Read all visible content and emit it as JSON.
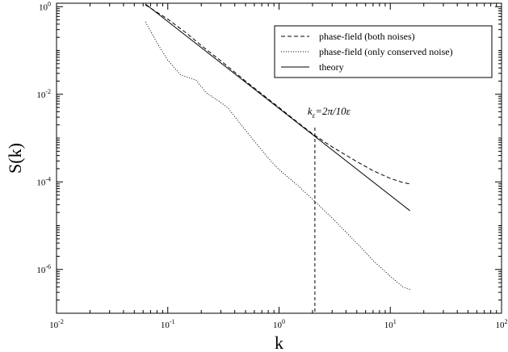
{
  "chart_data": {
    "type": "line",
    "xlabel": "k",
    "ylabel": "S(k)",
    "x_scale": "log",
    "y_scale": "log",
    "xlim": [
      0.01,
      100
    ],
    "ylim": [
      1e-07,
      1.2
    ],
    "x_ticks": [
      {
        "value": 0.01,
        "base": "10",
        "exp": "-2"
      },
      {
        "value": 0.1,
        "base": "10",
        "exp": "-1"
      },
      {
        "value": 1,
        "base": "10",
        "exp": "0"
      },
      {
        "value": 10,
        "base": "10",
        "exp": "1"
      },
      {
        "value": 100,
        "base": "10",
        "exp": "2"
      }
    ],
    "y_ticks": [
      {
        "value": 1e-06,
        "base": "10",
        "exp": "-6"
      },
      {
        "value": 0.0001,
        "base": "10",
        "exp": "-4"
      },
      {
        "value": 0.01,
        "base": "10",
        "exp": "-2"
      },
      {
        "value": 1,
        "base": "10",
        "exp": "0"
      }
    ],
    "grid": false,
    "legend_position": "top-right",
    "series": [
      {
        "name": "phase-field (both noises)",
        "style": "dashed",
        "color": "#000000",
        "x": [
          0.063,
          0.1,
          0.15,
          0.2,
          0.3,
          0.5,
          0.8,
          1.0,
          1.5,
          2.0,
          3.0,
          5.0,
          7.0,
          10.0,
          13.0,
          15.0
        ],
        "y": [
          1.1,
          0.52,
          0.24,
          0.13,
          0.058,
          0.02,
          0.0078,
          0.005,
          0.0022,
          0.00125,
          0.00063,
          0.00029,
          0.00018,
          0.00012,
          9.65e-05,
          9e-05
        ]
      },
      {
        "name": "phase-field (only conserved noise)",
        "style": "dotted",
        "color": "#000000",
        "x": [
          0.063,
          0.08,
          0.1,
          0.13,
          0.18,
          0.22,
          0.3,
          0.35,
          0.45,
          0.6,
          0.8,
          1.0,
          1.5,
          2.0,
          3.0,
          5.0,
          7.0,
          10.0,
          13.0,
          15.0
        ],
        "y": [
          0.45,
          0.15,
          0.06,
          0.028,
          0.021,
          0.011,
          0.0065,
          0.0048,
          0.0021,
          0.00085,
          0.00035,
          0.00019,
          8e-05,
          4e-05,
          1.5e-05,
          4e-06,
          1.6e-06,
          7e-07,
          4e-07,
          3.5e-07
        ]
      },
      {
        "name": "theory",
        "style": "solid",
        "color": "#000000",
        "x": [
          0.063,
          15.0
        ],
        "y": [
          1.15,
          2.2e-05
        ]
      }
    ],
    "annotations": [
      {
        "label": "k",
        "subscript": "ε",
        "text": "=2π/10ε",
        "x": 2.1,
        "style": "dashed-vertical-line"
      }
    ]
  }
}
